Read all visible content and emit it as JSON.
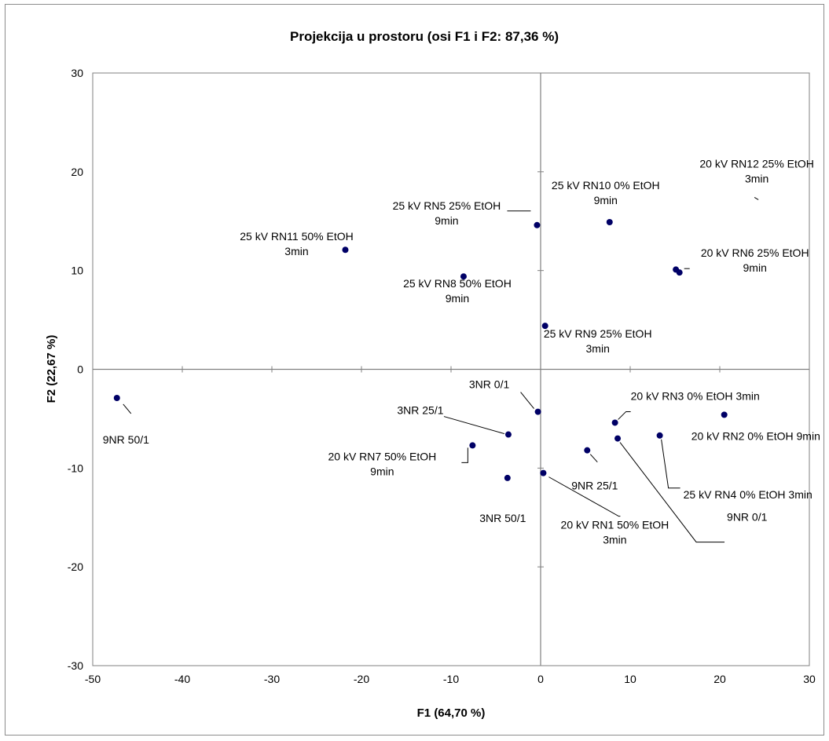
{
  "chart_data": {
    "type": "scatter",
    "title": "Projekcija u prostoru (osi F1 i F2: 87,36 %)",
    "xlabel": "F1 (64,70 %)",
    "ylabel": "F2 (22,67 %)",
    "xlim": [
      -50,
      30
    ],
    "ylim": [
      -30,
      30
    ],
    "xticks": [
      -50,
      -40,
      -30,
      -20,
      -10,
      0,
      10,
      20,
      30
    ],
    "yticks": [
      -30,
      -20,
      -10,
      0,
      10,
      20,
      30
    ],
    "grid": false,
    "zero_lines": true,
    "point_color": "#000066",
    "points": [
      {
        "x": -47.3,
        "y": -2.9,
        "label": [
          "9NR 50/1"
        ]
      },
      {
        "x": -21.8,
        "y": 12.1,
        "label": [
          "25 kV RN11 50% EtOH",
          "3min"
        ]
      },
      {
        "x": -8.6,
        "y": 9.4,
        "label": [
          "25 kV RN8 50% EtOH",
          "9min"
        ]
      },
      {
        "x": -0.4,
        "y": 14.6,
        "label": [
          "25 kV RN5 25% EtOH",
          "9min"
        ]
      },
      {
        "x": 7.7,
        "y": 14.9,
        "label": [
          "25 kV RN10 0% EtOH",
          "9min"
        ]
      },
      {
        "x": 0.5,
        "y": 4.4,
        "label": [
          "25 kV RN9 25% EtOH",
          "3min"
        ]
      },
      {
        "x": 15.1,
        "y": 10.1,
        "label": [
          "20 kV RN12 25% EtOH",
          "3min"
        ]
      },
      {
        "x": 15.5,
        "y": 9.8,
        "label": [
          "20 kV RN6 25% EtOH",
          "9min"
        ]
      },
      {
        "x": -0.3,
        "y": -4.3,
        "label": [
          "3NR 0/1"
        ]
      },
      {
        "x": -3.6,
        "y": -6.6,
        "label": [
          "3NR 25/1"
        ]
      },
      {
        "x": -7.6,
        "y": -7.7,
        "label": [
          "20 kV RN7 50% EtOH",
          "9min"
        ]
      },
      {
        "x": -3.7,
        "y": -11.0,
        "label": [
          "3NR 50/1"
        ]
      },
      {
        "x": 0.3,
        "y": -10.5,
        "label": [
          "20 kV RN1 50% EtOH",
          "3min"
        ]
      },
      {
        "x": 8.3,
        "y": -5.4,
        "label": [
          "20 kV RN3 0% EtOH 3min"
        ]
      },
      {
        "x": 8.6,
        "y": -7.0,
        "label": [
          "9NR 0/1"
        ]
      },
      {
        "x": 5.2,
        "y": -8.2,
        "label": [
          "9NR 25/1"
        ]
      },
      {
        "x": 13.3,
        "y": -6.7,
        "label": [
          "25 kV RN4 0% EtOH 3min"
        ]
      },
      {
        "x": 20.5,
        "y": -4.6,
        "label": [
          "20 kV RN2 0% EtOH 9min"
        ]
      }
    ]
  }
}
